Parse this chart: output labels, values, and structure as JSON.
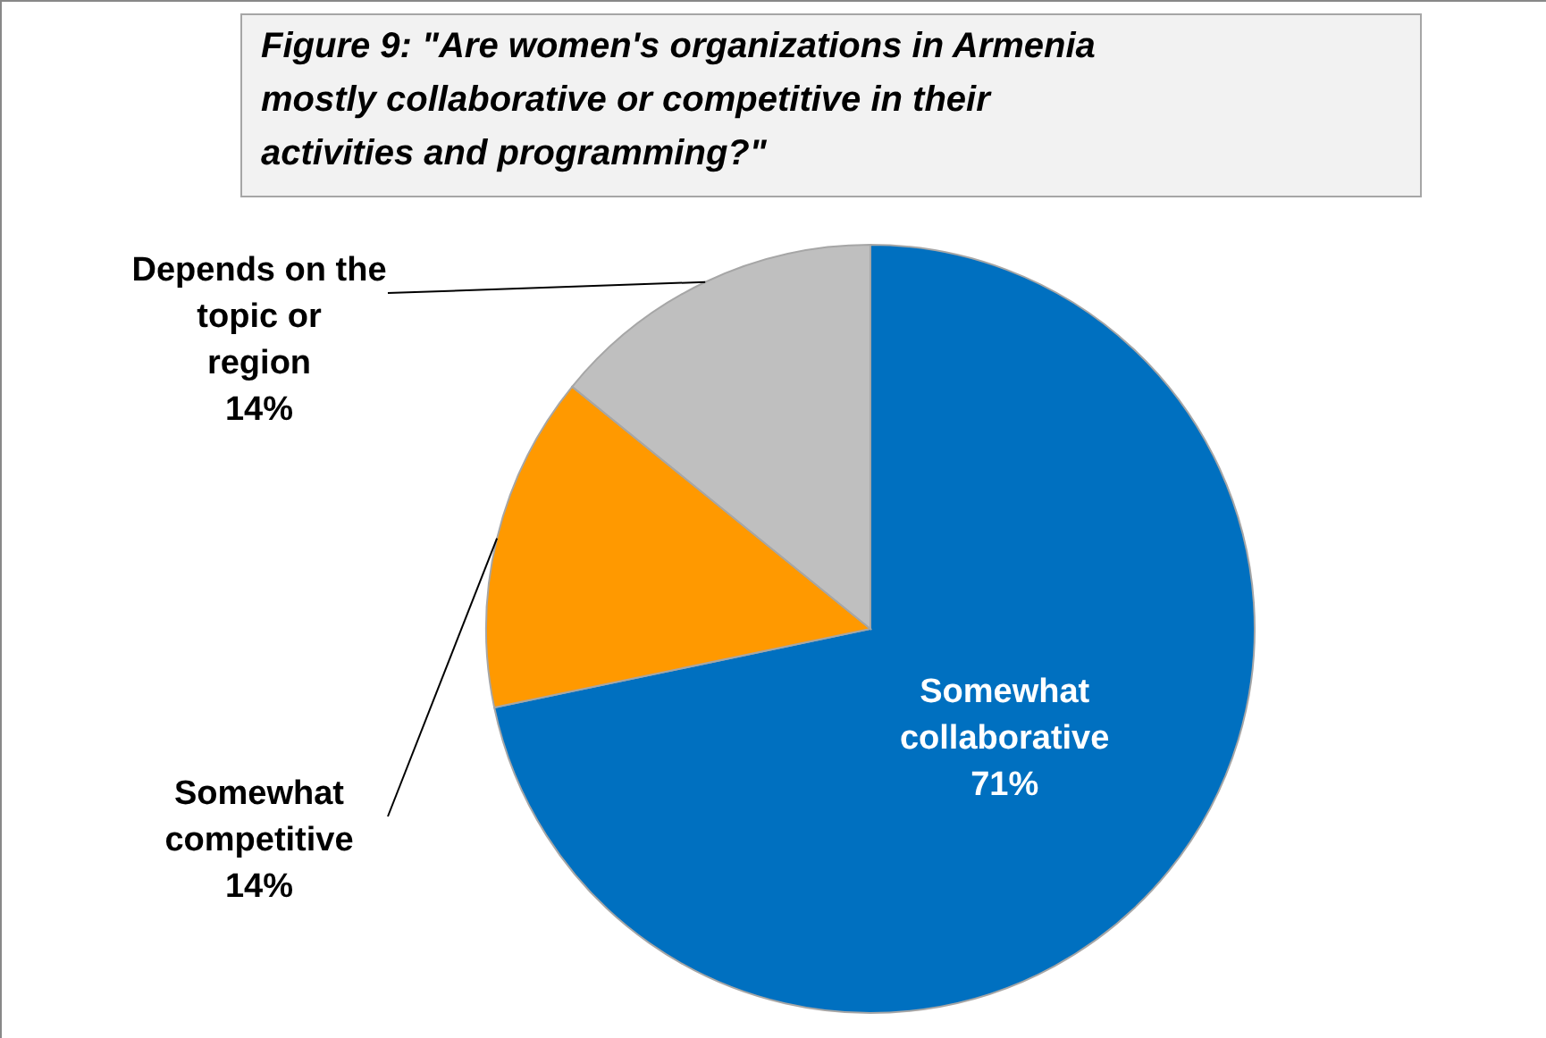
{
  "chart_data": {
    "type": "pie",
    "title": "Figure 9: \"Are women's organizations in Armenia mostly collaborative or competitive in their activities and programming?\"",
    "categories": [
      "Somewhat collaborative",
      "Somewhat competitive",
      "Depends on the topic or region"
    ],
    "values": [
      71,
      14,
      14
    ],
    "value_labels": [
      "71%",
      "14%",
      "14%"
    ],
    "colors": [
      "#0070c0",
      "#ff9900",
      "#bfbfbf"
    ]
  }
}
